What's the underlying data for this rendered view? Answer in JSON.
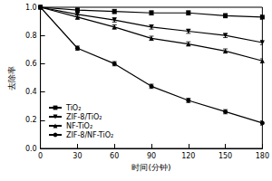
{
  "chart_data": {
    "type": "line",
    "x_label": "时间(分钟)",
    "y_label": "去除率",
    "x": [
      0,
      30,
      60,
      90,
      120,
      150,
      180
    ],
    "xlim": [
      0,
      180
    ],
    "xticks": [
      0,
      30,
      60,
      90,
      120,
      150,
      180
    ],
    "ylim": [
      0,
      1
    ],
    "yticks": [
      {
        "value": 0,
        "label": "0.0"
      },
      {
        "value": 0.2,
        "label": "0.2"
      },
      {
        "value": 0.4,
        "label": "0.4"
      },
      {
        "value": 0.6,
        "label": "0.6"
      },
      {
        "value": 0.8,
        "label": "0.8"
      },
      {
        "value": 1,
        "label": "1.0"
      }
    ],
    "grid": false,
    "legend": "lower left",
    "series": [
      {
        "name": "TiO₂",
        "color": "#000000",
        "marker": "square",
        "values": [
          1.0,
          0.98,
          0.97,
          0.96,
          0.96,
          0.94,
          0.93
        ],
        "errors": [
          0.01,
          0.015,
          0.015,
          0.015,
          0.015,
          0.015,
          0.015
        ]
      },
      {
        "name": "ZIF-8/TiO₂",
        "color": "#000000",
        "marker": "triangle_down",
        "values": [
          1.0,
          0.95,
          0.91,
          0.86,
          0.83,
          0.8,
          0.75
        ],
        "errors": [
          0.01,
          0.015,
          0.015,
          0.015,
          0.015,
          0.015,
          0.015
        ]
      },
      {
        "name": "NF-TiO₂",
        "color": "#000000",
        "marker": "triangle",
        "values": [
          1.0,
          0.93,
          0.86,
          0.78,
          0.74,
          0.69,
          0.62
        ],
        "errors": [
          0.01,
          0.015,
          0.015,
          0.015,
          0.015,
          0.015,
          0.015
        ]
      },
      {
        "name": "ZIF-8/NF-TiO₂",
        "color": "#000000",
        "marker": "circle",
        "values": [
          1.0,
          0.71,
          0.6,
          0.44,
          0.34,
          0.26,
          0.18
        ],
        "errors": [
          0.01,
          0.015,
          0.015,
          0.015,
          0.015,
          0.015,
          0.015
        ]
      }
    ]
  }
}
